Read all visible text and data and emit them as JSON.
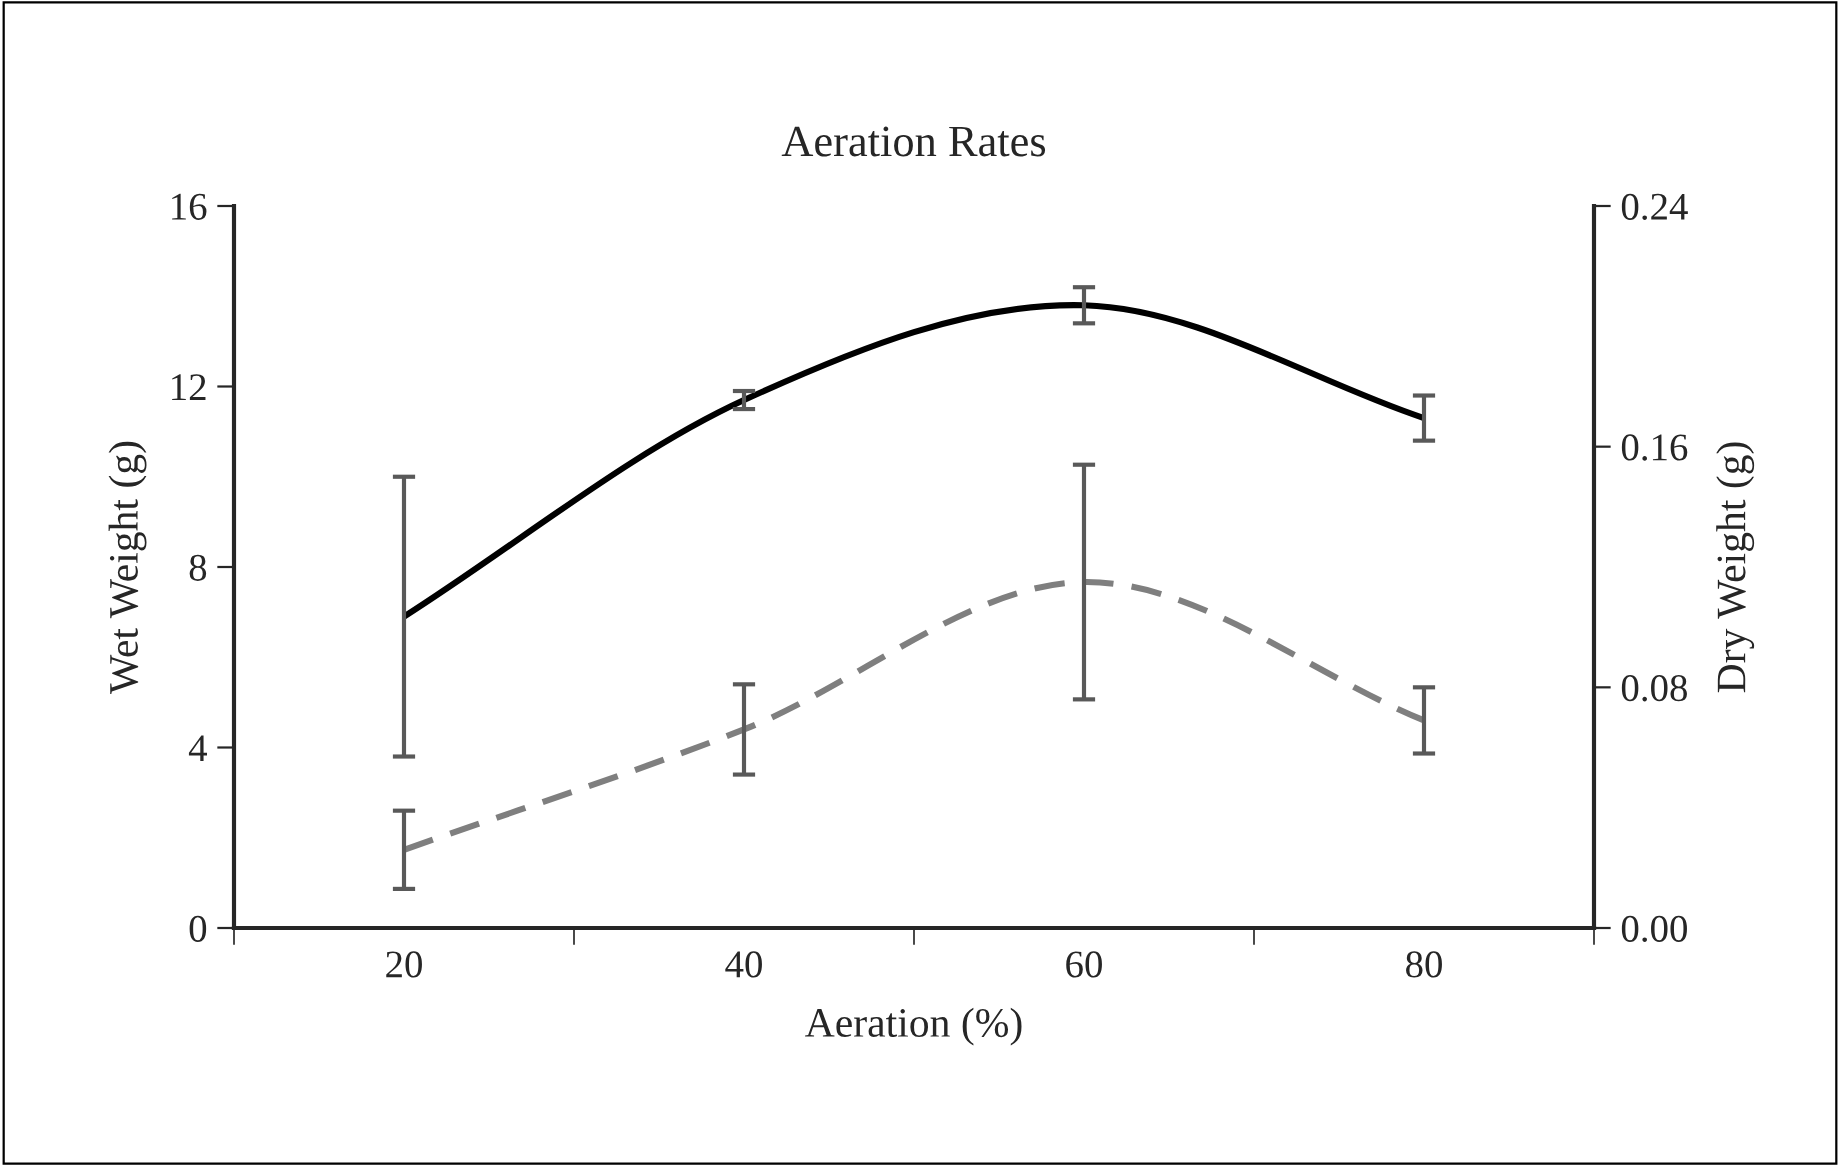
{
  "chart_data": {
    "type": "line",
    "title": "Aeration Rates",
    "xlabel": "Aeration (%)",
    "ylabel": "Wet Weight (g)",
    "y2label": "Dry Weight (g)",
    "categories": [
      "20",
      "40",
      "60",
      "80"
    ],
    "series": [
      {
        "color": "#000000",
        "line_style": "solid",
        "values": [
          6.9,
          11.7,
          13.8,
          11.3
        ],
        "errors": [
          3.1,
          0.2,
          0.4,
          0.5
        ]
      },
      {
        "color": "#7f7f7f",
        "line_style": "dashed",
        "axis": "y2",
        "values": [
          0.026,
          0.066,
          0.115,
          0.069
        ],
        "errors": [
          0.013,
          0.015,
          0.039,
          0.011
        ]
      }
    ],
    "ylim": [
      0,
      16
    ],
    "yticks": [
      0,
      4,
      8,
      12,
      16
    ],
    "y2lim": [
      0,
      0.24
    ],
    "y2ticks": [
      {
        "value": 0,
        "label": "0.00"
      },
      {
        "value": 0.08,
        "label": "0.08"
      },
      {
        "value": 0.16,
        "label": "0.16"
      },
      {
        "value": 0.24,
        "label": "0.24"
      }
    ],
    "grid": false,
    "legend": false,
    "marker": "none"
  }
}
